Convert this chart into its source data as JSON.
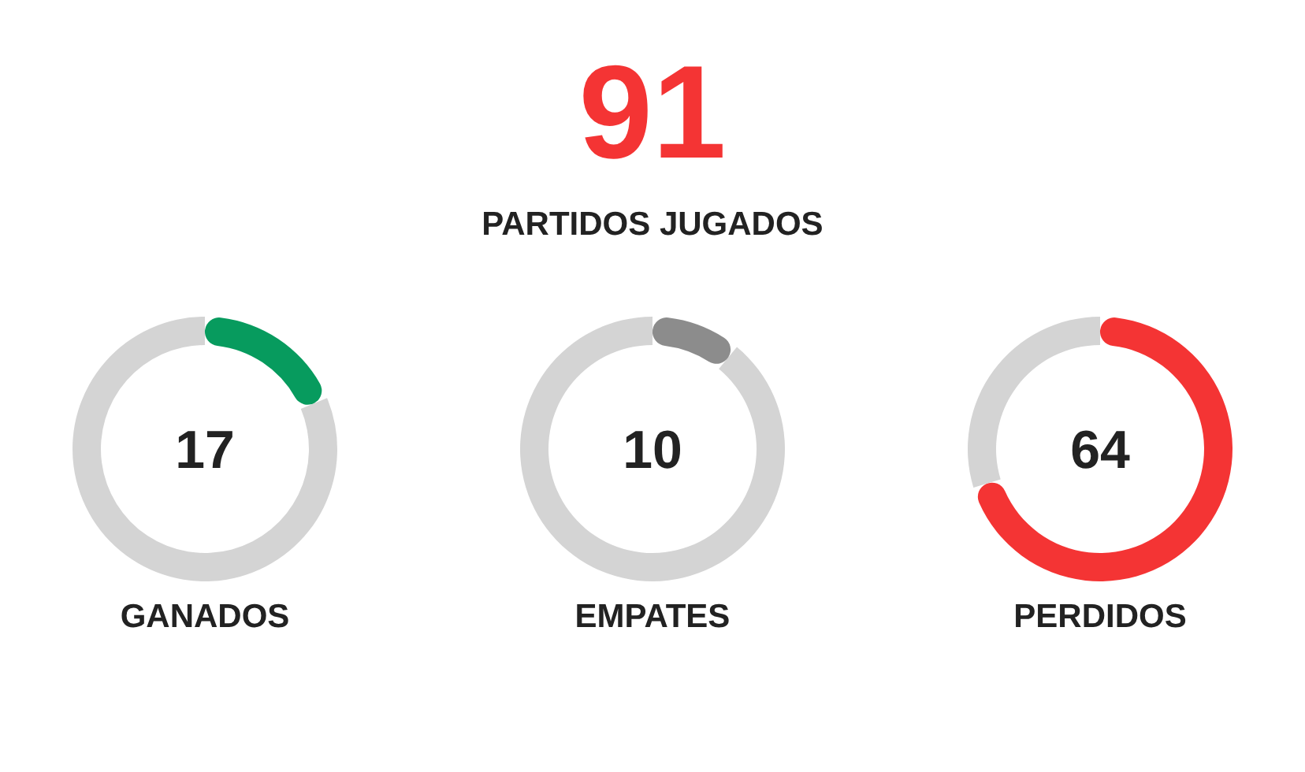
{
  "chart_data": [
    {
      "type": "other",
      "title": "91",
      "subtitle": "PARTIDOS JUGADOS"
    },
    {
      "type": "donut",
      "title": "GANADOS",
      "categories": [
        null,
        null
      ],
      "values": [
        18.7,
        81.3
      ],
      "colors": [
        "#079b5e",
        "#d4d4d4"
      ],
      "annotations": [
        "17"
      ]
    },
    {
      "type": "donut",
      "title": "EMPATES",
      "categories": [
        null,
        null
      ],
      "values": [
        11,
        89
      ],
      "colors": [
        "#8c8c8c",
        "#d4d4d4"
      ],
      "annotations": [
        "10"
      ]
    },
    {
      "type": "donut",
      "title": "PERDIDOS",
      "categories": [
        null,
        null
      ],
      "values": [
        70.3,
        29.7
      ],
      "colors": [
        "#f43434",
        "#d4d4d4"
      ],
      "annotations": [
        "64"
      ]
    }
  ]
}
